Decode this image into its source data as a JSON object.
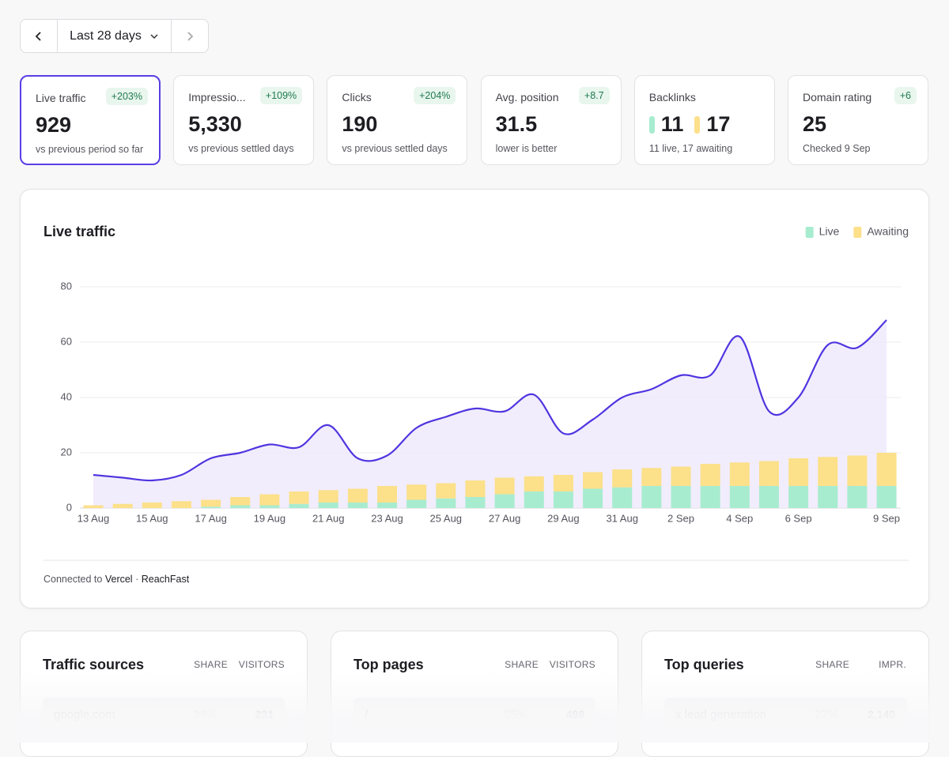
{
  "nav": {
    "range": "Last 28 days"
  },
  "cards": [
    {
      "label": "Live traffic",
      "badge": "+203%",
      "value": "929",
      "note": "vs previous period so far",
      "active": true
    },
    {
      "label": "Impressio...",
      "badge": "+109%",
      "value": "5,330",
      "note": "vs previous settled days"
    },
    {
      "label": "Clicks",
      "badge": "+204%",
      "value": "190",
      "note": "vs previous settled days"
    },
    {
      "label": "Avg. position",
      "badge": "+8.7",
      "value": "31.5",
      "note": "lower is better"
    },
    {
      "label": "Backlinks",
      "parts": [
        {
          "value": "11",
          "color": "#a8ecd0"
        },
        {
          "value": "17",
          "color": "#fce08a"
        }
      ],
      "note": "11 live, 17 awaiting"
    },
    {
      "label": "Domain rating",
      "badge": "+6",
      "value": "25",
      "note": "Checked 9 Sep"
    }
  ],
  "chart_data": {
    "type": "bar",
    "stacked": true,
    "title": "Live traffic",
    "categories": [
      "13 Aug",
      null,
      "15 Aug",
      null,
      "17 Aug",
      null,
      "19 Aug",
      null,
      "21 Aug",
      null,
      "23 Aug",
      null,
      "25 Aug",
      null,
      "27 Aug",
      null,
      "29 Aug",
      null,
      "31 Aug",
      null,
      "2 Sep",
      null,
      "4 Sep",
      null,
      "6 Sep",
      null,
      null,
      "9 Sep"
    ],
    "series": [
      {
        "name": "Live",
        "color": "#a8ecd0",
        "values": [
          0,
          0,
          0,
          0,
          0.5,
          1,
          1,
          1.5,
          2,
          2,
          2,
          3,
          3.5,
          4,
          5,
          6,
          6,
          7,
          7.5,
          8,
          8,
          8,
          8,
          8,
          8,
          8,
          8,
          8
        ]
      },
      {
        "name": "Awaiting",
        "color": "#fce08a",
        "values": [
          1,
          1.5,
          2,
          2.5,
          2.5,
          3,
          4,
          4.5,
          4.5,
          5,
          6,
          5.5,
          5.5,
          6,
          6,
          5.5,
          6,
          6,
          6.5,
          6.5,
          7,
          8,
          8.5,
          9,
          10,
          10.5,
          11,
          12
        ]
      }
    ],
    "line": {
      "color": "#4f35e0",
      "fill": "#ede9fb",
      "values": [
        12,
        11,
        10,
        12,
        18,
        20,
        23,
        22,
        30,
        18,
        19,
        29,
        33,
        36,
        35,
        41,
        27,
        32,
        40,
        43,
        48,
        48,
        62,
        35,
        40,
        59,
        58,
        68
      ]
    },
    "ylim": [
      0,
      80
    ],
    "yticks": [
      0,
      20,
      40,
      60,
      80
    ],
    "grid": true,
    "legend": "top-right"
  },
  "footer": {
    "prefix": "Connected to",
    "links": [
      "Vercel",
      "ReachFast"
    ],
    "separator": "·"
  },
  "panels": [
    {
      "title": "Traffic sources",
      "columns": [
        "SHARE",
        "VISITORS"
      ],
      "rows": [
        [
          "google.com",
          "34%",
          "231"
        ]
      ]
    },
    {
      "title": "Top pages",
      "columns": [
        "SHARE",
        "VISITORS"
      ],
      "rows": [
        [
          "/",
          "55%",
          "498"
        ]
      ]
    },
    {
      "title": "Top queries",
      "columns": [
        "SHARE",
        "IMPR."
      ],
      "rows": [
        [
          "x lead generation",
          "27%",
          "2,140"
        ]
      ]
    }
  ]
}
